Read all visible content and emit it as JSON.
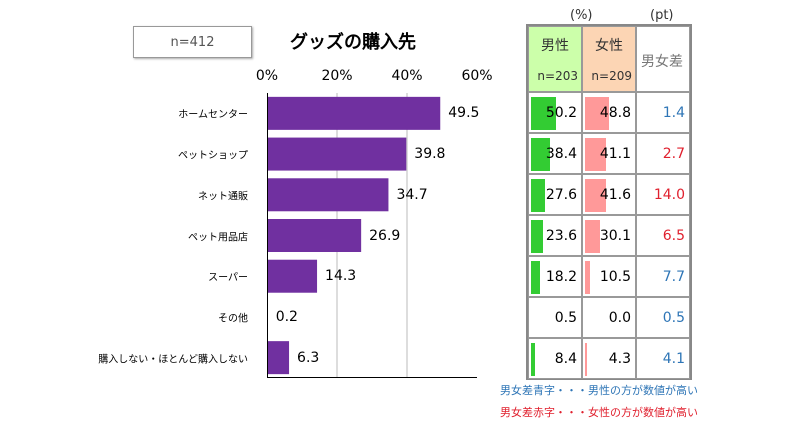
{
  "n_label": "n=412",
  "chart_data": {
    "type": "bar",
    "orientation": "horizontal",
    "title": "グッズの購入先",
    "categories": [
      "ホームセンター",
      "ペットショップ",
      "ネット通販",
      "ペット用品店",
      "スーパー",
      "その他",
      "購入しない・ほとんど購入しない"
    ],
    "values": [
      49.5,
      39.8,
      34.7,
      26.9,
      14.3,
      0.2,
      6.3
    ],
    "xlim": [
      0,
      60
    ],
    "ticks": [
      "0%",
      "20%",
      "40%",
      "60%"
    ],
    "grid": true,
    "bar_color": "#7030a0"
  },
  "table": {
    "unit_pct": "(%)",
    "unit_pt": "(pt)",
    "male": {
      "label": "男性",
      "n": "n=203",
      "color": "#ccffaa",
      "bar_color": "#33cc33",
      "values": [
        "50.2",
        "38.4",
        "27.6",
        "23.6",
        "18.2",
        "0.5",
        "8.4"
      ]
    },
    "female": {
      "label": "女性",
      "n": "n=209",
      "color": "#fcd5b4",
      "bar_color": "#ff9999",
      "values": [
        "48.8",
        "41.1",
        "41.6",
        "30.1",
        "10.5",
        "0.0",
        "4.3"
      ]
    },
    "diff": {
      "label": "男女差",
      "values": [
        "1.4",
        "2.7",
        "14.0",
        "6.5",
        "7.7",
        "0.5",
        "4.1"
      ],
      "colors": [
        "#2e75b6",
        "#e0202e",
        "#e0202e",
        "#e0202e",
        "#2e75b6",
        "#2e75b6",
        "#2e75b6"
      ]
    }
  },
  "notes": {
    "blue": "男女差青字・・・男性の方が数値が高い",
    "red": "男女差赤字・・・女性の方が数値が高い",
    "blue_color": "#2e75b6",
    "red_color": "#e0202e"
  }
}
